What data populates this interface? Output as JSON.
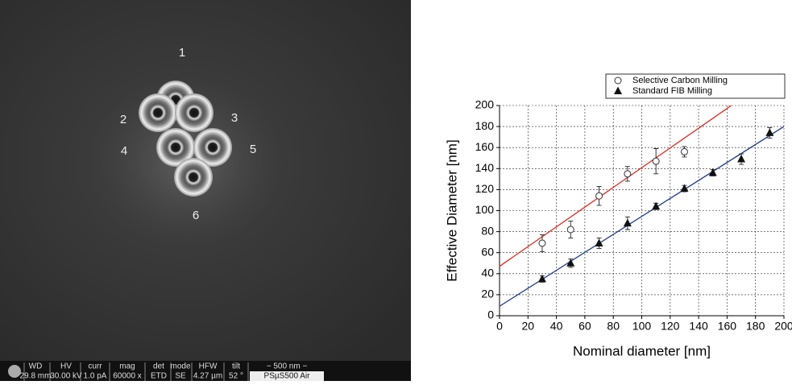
{
  "micrograph": {
    "labels": [
      "1",
      "2",
      "3",
      "4",
      "5",
      "6"
    ],
    "info_bar": {
      "headers": [
        "WD",
        "HV",
        "curr",
        "mag",
        "det",
        "mode",
        "HFW",
        "tilt",
        "− 500 nm −"
      ],
      "values": [
        "29.8 mm",
        "30.00 kV",
        "1.0 pA",
        "60000 x",
        "ETD",
        "SE",
        "4.27 µm",
        "52 °",
        "PSµS500 Air"
      ]
    }
  },
  "chart_data": {
    "type": "scatter",
    "x_label": "Nominal diameter [nm]",
    "y_label": "Effective Diameter [nm]",
    "xlim": [
      0,
      200
    ],
    "xticks": [
      0,
      20,
      40,
      60,
      80,
      100,
      120,
      140,
      160,
      180,
      200
    ],
    "ylim": [
      0,
      200
    ],
    "yticks": [
      0,
      20,
      40,
      60,
      80,
      100,
      120,
      140,
      160,
      180,
      200
    ],
    "grid": true,
    "legend": "top-right",
    "series": [
      {
        "name": "Selective Carbon Milling",
        "color": "#333333",
        "marker": "circle-open",
        "x": [
          30,
          50,
          70,
          90,
          110,
          130
        ],
        "values": [
          69,
          82,
          114,
          135,
          147,
          156
        ],
        "errors": [
          8,
          8,
          9,
          7,
          12,
          5
        ]
      },
      {
        "name": "Standard FIB Milling",
        "color": "#111111",
        "marker": "triangle",
        "x": [
          30,
          50,
          70,
          90,
          110,
          130,
          150,
          170,
          190
        ],
        "values": [
          35,
          50,
          69,
          88,
          104,
          121,
          136,
          149,
          174
        ],
        "errors": [
          3,
          4,
          5,
          6,
          3,
          3,
          3,
          5,
          5
        ]
      }
    ],
    "fit_lines": [
      {
        "color": "#e0281e",
        "x": [
          0,
          163
        ],
        "values": [
          47,
          200
        ]
      },
      {
        "color": "#1e3a8c",
        "x": [
          0,
          200
        ],
        "values": [
          9,
          180
        ]
      }
    ]
  }
}
